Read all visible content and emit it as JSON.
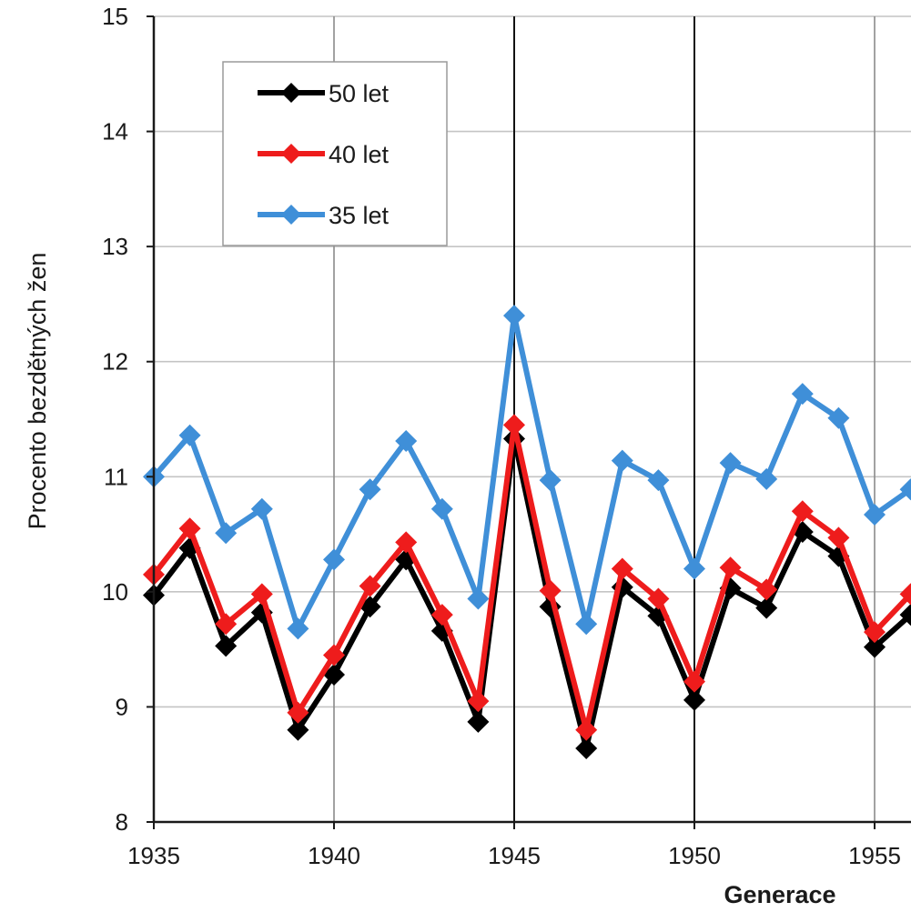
{
  "chart_data": {
    "type": "line",
    "title": "",
    "xlabel": "Generace",
    "ylabel": "Procento bezdětných žen",
    "xlim": [
      1935,
      1956
    ],
    "ylim": [
      8,
      15
    ],
    "x_ticks": [
      1935,
      1940,
      1945,
      1950,
      1955
    ],
    "y_ticks": [
      8,
      9,
      10,
      11,
      12,
      13,
      14,
      15
    ],
    "grid": true,
    "legend_position": "top-left",
    "x": [
      1935,
      1936,
      1937,
      1938,
      1939,
      1940,
      1941,
      1942,
      1943,
      1944,
      1945,
      1946,
      1947,
      1948,
      1949,
      1950,
      1951,
      1952,
      1953,
      1954,
      1955,
      1956
    ],
    "series": [
      {
        "name": "50 let",
        "color": "#000000",
        "values": [
          9.97,
          10.38,
          9.53,
          9.82,
          8.8,
          9.28,
          9.87,
          10.28,
          9.66,
          8.87,
          11.33,
          9.87,
          8.64,
          10.04,
          9.79,
          9.06,
          10.03,
          9.86,
          10.52,
          10.31,
          9.52,
          9.8
        ]
      },
      {
        "name": "40 let",
        "color": "#ee1c1c",
        "values": [
          10.15,
          10.55,
          9.72,
          9.98,
          8.95,
          9.45,
          10.05,
          10.43,
          9.8,
          9.05,
          11.45,
          10.01,
          8.8,
          10.2,
          9.94,
          9.22,
          10.21,
          10.02,
          10.7,
          10.47,
          9.65,
          9.98
        ]
      },
      {
        "name": "35 let",
        "color": "#3f8fd8",
        "values": [
          11.0,
          11.36,
          10.51,
          10.72,
          9.68,
          10.28,
          10.89,
          11.31,
          10.72,
          9.94,
          12.4,
          10.97,
          9.72,
          11.14,
          10.97,
          10.2,
          11.12,
          10.98,
          11.72,
          11.51,
          10.67,
          10.89
        ]
      }
    ]
  }
}
